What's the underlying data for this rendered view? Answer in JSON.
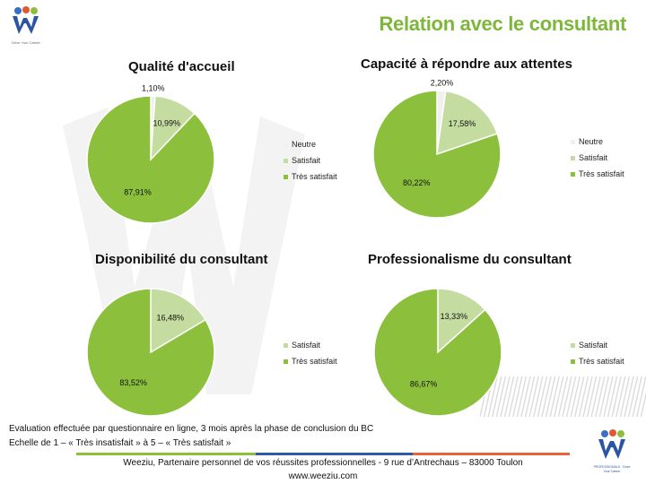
{
  "header": {
    "title": "Relation avec le consultant",
    "logo_tagline": "Drive Your Career"
  },
  "colors": {
    "neutre": "#f0f0f0",
    "satisfait": "#c5dca0",
    "tres_satisfait": "#8cc03c",
    "title_green": "#7db73a",
    "footer_green": "#8cc03c",
    "footer_blue": "#2e5aa8",
    "footer_orange": "#e8623a"
  },
  "chart_data": [
    {
      "type": "pie",
      "title": "Qualité d'accueil",
      "slices": [
        {
          "label": "Neutre",
          "value": 1.1,
          "text": "1,10%"
        },
        {
          "label": "Satisfait",
          "value": 10.99,
          "text": "10,99%"
        },
        {
          "label": "Très satisfait",
          "value": 87.91,
          "text": "87,91%"
        }
      ],
      "legend": [
        "Neutre",
        "Satisfait",
        "Très satisfait"
      ],
      "legend_position": "right"
    },
    {
      "type": "pie",
      "title": "Capacité à répondre aux attentes",
      "slices": [
        {
          "label": "Neutre",
          "value": 2.2,
          "text": "2,20%"
        },
        {
          "label": "Satisfait",
          "value": 17.58,
          "text": "17,58%"
        },
        {
          "label": "Très satisfait",
          "value": 80.22,
          "text": "80,22%"
        }
      ],
      "legend": [
        "Neutre",
        "Satisfait",
        "Très satisfait"
      ],
      "legend_position": "right"
    },
    {
      "type": "pie",
      "title": "Disponibilité du consultant",
      "slices": [
        {
          "label": "Satisfait",
          "value": 16.48,
          "text": "16,48%"
        },
        {
          "label": "Très satisfait",
          "value": 83.52,
          "text": "83,52%"
        }
      ],
      "legend": [
        "Satisfait",
        "Très satisfait"
      ],
      "legend_position": "right"
    },
    {
      "type": "pie",
      "title": "Professionalisme du consultant",
      "slices": [
        {
          "label": "Satisfait",
          "value": 13.33,
          "text": "13,33%"
        },
        {
          "label": "Très satisfait",
          "value": 86.67,
          "text": "86,67%"
        }
      ],
      "legend": [
        "Satisfait",
        "Très satisfait"
      ],
      "legend_position": "right"
    }
  ],
  "footer": {
    "note_line1": "Evaluation effectuée par questionnaire en ligne, 3 mois après la phase de conclusion du BC",
    "note_line2": "Echelle de 1 – « Très insatisfait » à 5 – « Très satisfait »",
    "company_line": "Weeziu, Partenaire personnel de vos réussites professionnelles - 9 rue d’Antrechaus – 83000 Toulon",
    "website": "www.weeziu.com",
    "logo_tagline": "PROFESSIONALS · Drive Your Career"
  }
}
